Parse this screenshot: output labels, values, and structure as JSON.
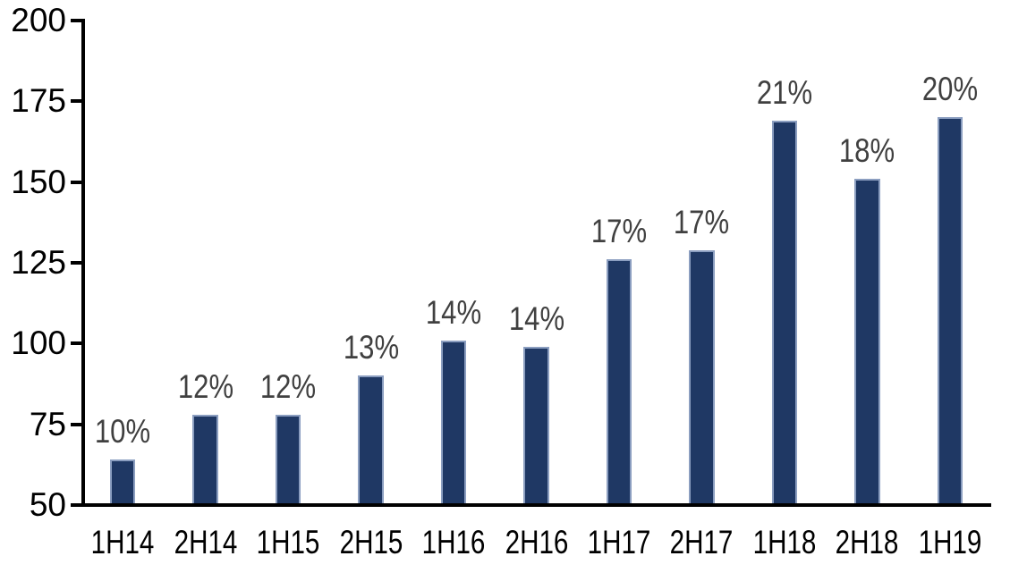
{
  "chart_data": {
    "type": "bar",
    "title": "",
    "xlabel": "",
    "ylabel": "",
    "categories": [
      "1H14",
      "2H14",
      "1H15",
      "2H15",
      "1H16",
      "2H16",
      "1H17",
      "2H17",
      "1H18",
      "2H18",
      "1H19"
    ],
    "values": [
      64,
      78,
      78,
      90,
      101,
      99,
      126,
      129,
      169,
      151,
      170
    ],
    "data_labels": [
      "10%",
      "12%",
      "12%",
      "13%",
      "14%",
      "14%",
      "17%",
      "17%",
      "21%",
      "18%",
      "20%"
    ],
    "ylim": [
      50,
      200
    ],
    "y_ticks": [
      50,
      75,
      100,
      125,
      150,
      175,
      200
    ],
    "grid": false,
    "legend": false,
    "colors": {
      "bar_fill": "#1F3864",
      "bar_border": "#8B9EC0",
      "data_label": "#404040",
      "axis_text": "#000000",
      "axis_line": "#000000"
    }
  }
}
